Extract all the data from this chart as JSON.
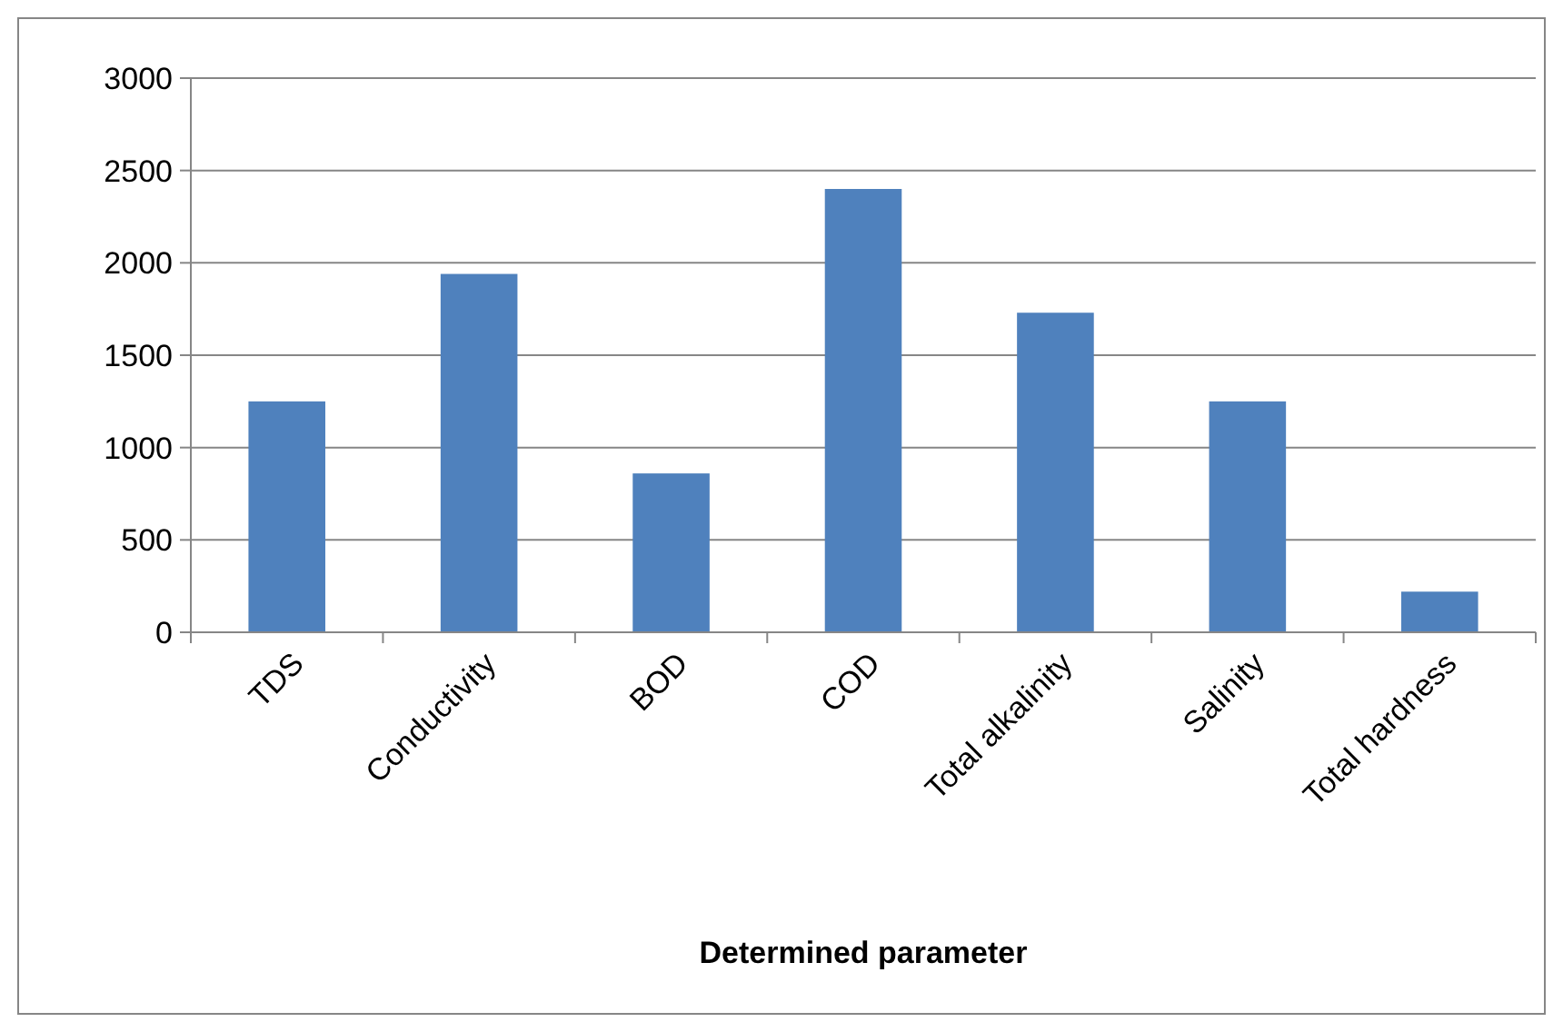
{
  "chart_data": {
    "type": "bar",
    "xlabel": "Determined parameter",
    "categories": [
      "TDS",
      "Conductivity",
      "BOD",
      "COD",
      "Total alkalinity",
      "Salinity",
      "Total hardness"
    ],
    "values": [
      1250,
      1940,
      860,
      2400,
      1730,
      1250,
      220
    ],
    "color": "#4f81bd",
    "ylim": [
      0,
      3000
    ],
    "yticks": [
      0,
      500,
      1000,
      1500,
      2000,
      2500,
      3000
    ],
    "grid": "y"
  }
}
